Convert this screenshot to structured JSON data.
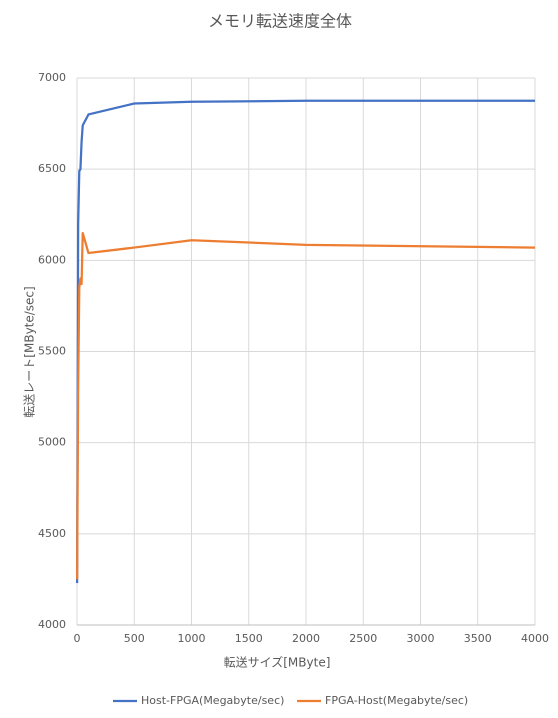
{
  "chart_data": {
    "type": "line",
    "title": "メモリ転送速度全体",
    "x_label": "転送サイズ[MByte]",
    "y_label": "転送レート[MByte/sec]",
    "x": [
      1,
      10,
      20,
      30,
      40,
      50,
      100,
      500,
      1000,
      2000,
      4000
    ],
    "series": [
      {
        "name": "Host-FPGA(Megabyte/sec)",
        "color": "#4472c4",
        "values": [
          4230,
          6200,
          6490,
          6500,
          6650,
          6740,
          6800,
          6860,
          6870,
          6875,
          6875
        ]
      },
      {
        "name": "FPGA-Host(Megabyte/sec)",
        "color": "#ed7d31",
        "values": [
          4250,
          5300,
          5850,
          5900,
          5870,
          6150,
          6040,
          6070,
          6110,
          6085,
          6070
        ]
      }
    ],
    "xlim": [
      0,
      4000
    ],
    "xticks": [
      0,
      500,
      1000,
      1500,
      2000,
      2500,
      3000,
      3500,
      4000
    ],
    "ylim": [
      4000,
      7000
    ],
    "yticks": [
      4000,
      4500,
      5000,
      5500,
      6000,
      6500,
      7000
    ],
    "grid": true,
    "legend": "bottom"
  }
}
